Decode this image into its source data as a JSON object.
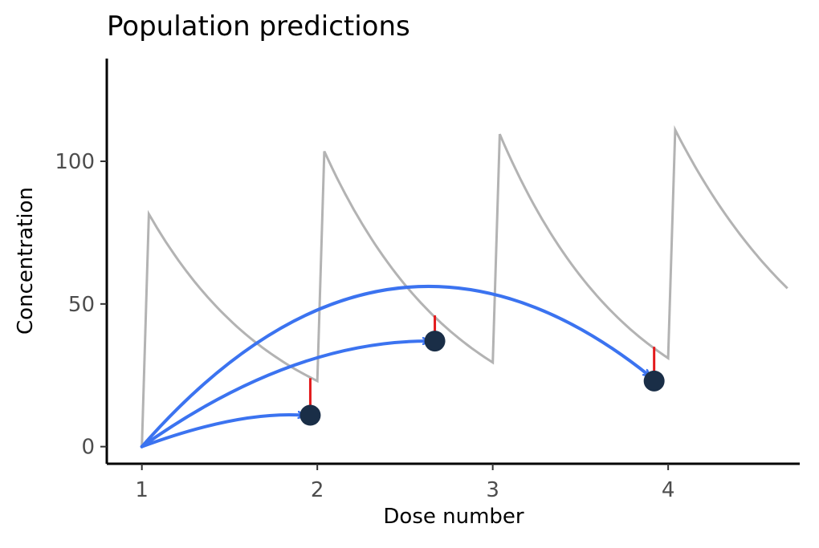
{
  "chart_data": {
    "type": "line",
    "title": "Population predictions",
    "xlabel": "Dose number",
    "ylabel": "Concentration",
    "xlim": [
      0.8,
      4.75
    ],
    "ylim": [
      -6,
      136
    ],
    "x_ticks": [
      "1",
      "2",
      "3",
      "4"
    ],
    "x_tick_values": [
      1,
      2,
      3,
      4
    ],
    "y_ticks": [
      "0",
      "50",
      "100"
    ],
    "y_tick_values": [
      0,
      50,
      100
    ],
    "grid": false,
    "legend": "none",
    "colors": {
      "curve": "#b3b3b3",
      "arrow": "#3b73f0",
      "residual": "#e31a1c",
      "observation": "#1a2e47",
      "axis": "#000000"
    },
    "series": [
      {
        "kind": "prediction-curve",
        "dose_times": [
          1.0,
          2.0,
          3.0,
          4.0
        ],
        "absorption_duration": 0.04,
        "t_end": 4.68,
        "peaks": [
          81.5,
          103.5,
          109.5,
          111.0
        ],
        "troughs": [
          0.0,
          23.0,
          29.5,
          31.0
        ],
        "end_value": 55.5
      },
      {
        "kind": "observations",
        "points": [
          {
            "x": 1.96,
            "y": 11.0,
            "predicted": 24.0
          },
          {
            "x": 2.67,
            "y": 37.0,
            "predicted": 46.0
          },
          {
            "x": 3.92,
            "y": 23.0,
            "predicted": 35.0
          }
        ]
      },
      {
        "kind": "arrows",
        "from": [
          1.0,
          0.0
        ],
        "arrows": [
          {
            "to": [
              1.92,
              11.0
            ],
            "control": [
              1.55,
              12.5
            ]
          },
          {
            "to": [
              2.63,
              37.0
            ],
            "control": [
              1.85,
              37.0
            ]
          },
          {
            "to": [
              3.89,
              25.0
            ],
            "control": [
              2.4,
              98.0
            ]
          }
        ]
      }
    ]
  }
}
